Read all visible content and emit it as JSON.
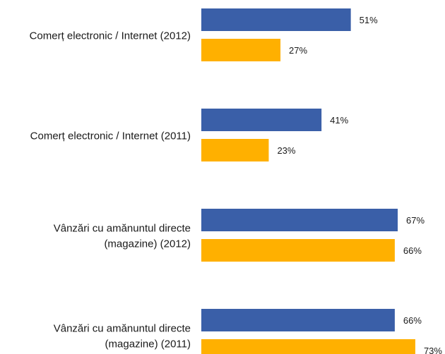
{
  "chart_data": {
    "type": "bar",
    "orientation": "horizontal",
    "categories": [
      [
        "Comerț electronic / Internet (2012)"
      ],
      [
        "Comerț electronic / Internet (2011)"
      ],
      [
        "Vânzări cu amănuntul directe",
        "(magazine) (2012)"
      ],
      [
        "Vânzări cu amănuntul directe",
        "(magazine) (2011)"
      ]
    ],
    "series": [
      {
        "values": [
          51,
          41,
          67,
          66
        ],
        "value_labels": [
          "51%",
          "41%",
          "67%",
          "66%"
        ],
        "color": "#3a5fa8"
      },
      {
        "values": [
          27,
          23,
          66,
          73
        ],
        "value_labels": [
          "27%",
          "23%",
          "66%",
          "73%"
        ],
        "color": "#ffb000"
      }
    ],
    "unit": "%",
    "xlim": [
      0,
      100
    ],
    "grid": false,
    "legend": "none"
  }
}
